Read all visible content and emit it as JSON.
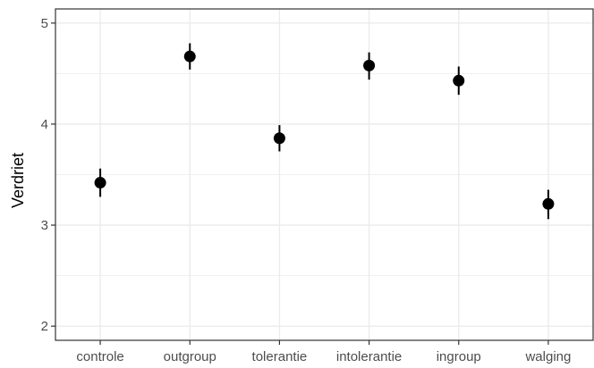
{
  "chart_data": {
    "type": "scatter",
    "title": "",
    "xlabel": "",
    "ylabel": "Verdriet",
    "categories": [
      "controle",
      "outgroup",
      "tolerantie",
      "intolerantie",
      "ingroup",
      "walging"
    ],
    "series": [
      {
        "values": [
          3.42,
          4.67,
          3.86,
          4.58,
          4.43,
          3.21
        ],
        "lower": [
          3.28,
          4.54,
          3.73,
          4.44,
          4.29,
          3.06
        ],
        "upper": [
          3.56,
          4.8,
          3.99,
          4.71,
          4.57,
          3.35
        ],
        "color": "#000000"
      }
    ],
    "ylim": [
      1.86,
      5.14
    ],
    "yticks": [
      2,
      3,
      4,
      5
    ],
    "yticklabels": [
      "2",
      "3",
      "4",
      "5"
    ],
    "grid": true,
    "legend": "none",
    "panel_border_color": "#333333",
    "grid_color": "#ebebeb"
  }
}
